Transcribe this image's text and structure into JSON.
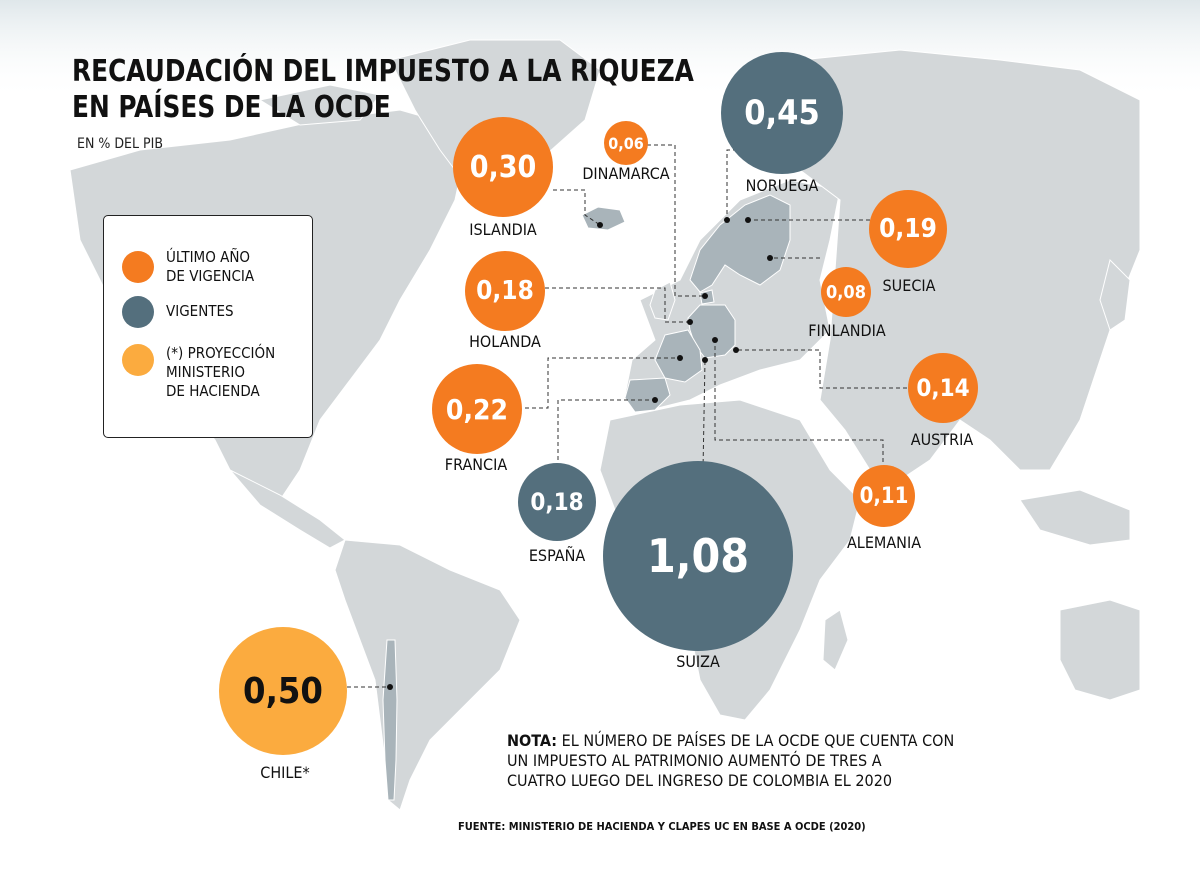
{
  "title_line1": "RECAUDACIÓN DEL IMPUESTO A LA RIQUEZA",
  "title_line2": "EN PAÍSES DE LA OCDE",
  "subtitle": "EN % DEL PIB",
  "colors": {
    "ultimo": "#f47b20",
    "vigentes": "#546f7d",
    "proyeccion": "#fbab3f",
    "land": "#d3d7d9",
    "highlight": "#a9b4ba",
    "ocean": "#ffffff"
  },
  "legend": [
    {
      "label": "ÚLTIMO AÑO\nDE VIGENCIA",
      "color": "#f47b20"
    },
    {
      "label": "VIGENTES",
      "color": "#546f7d"
    },
    {
      "label": "(*) PROYECCIÓN\nMINISTERIO\nDE HACIENDA",
      "color": "#fbab3f"
    }
  ],
  "countries": [
    {
      "name": "ISLANDIA",
      "value": "0,30",
      "category": "ultimo"
    },
    {
      "name": "DINAMARCA",
      "value": "0,06",
      "category": "ultimo"
    },
    {
      "name": "NORUEGA",
      "value": "0,45",
      "category": "vigentes"
    },
    {
      "name": "SUECIA",
      "value": "0,19",
      "category": "ultimo"
    },
    {
      "name": "FINLANDIA",
      "value": "0,08",
      "category": "ultimo"
    },
    {
      "name": "HOLANDA",
      "value": "0,18",
      "category": "ultimo"
    },
    {
      "name": "FRANCIA",
      "value": "0,22",
      "category": "ultimo"
    },
    {
      "name": "AUSTRIA",
      "value": "0,14",
      "category": "ultimo"
    },
    {
      "name": "ESPAÑA",
      "value": "0,18",
      "category": "vigentes"
    },
    {
      "name": "SUIZA",
      "value": "1,08",
      "category": "vigentes"
    },
    {
      "name": "ALEMANIA",
      "value": "0,11",
      "category": "ultimo"
    },
    {
      "name": "CHILE*",
      "value": "0,50",
      "category": "proyeccion"
    }
  ],
  "note_bold": "NOTA:",
  "note_text": " EL NÚMERO DE PAÍSES DE LA OCDE QUE CUENTA CON\nUN IMPUESTO AL PATRIMONIO AUMENTÓ DE TRES A\nCUATRO LUEGO DEL INGRESO DE COLOMBIA EL 2020",
  "source": "FUENTE: MINISTERIO DE HACIENDA Y CLAPES UC EN BASE A OCDE (2020)"
}
